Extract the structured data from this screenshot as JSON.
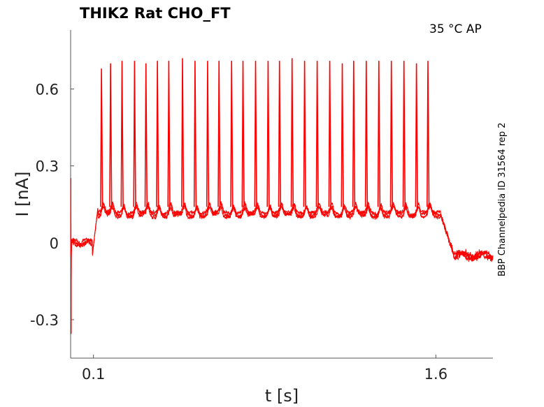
{
  "chart_data": {
    "type": "line",
    "title": "THIK2  Rat  CHO_FT",
    "annotation": "35 °C  AP",
    "side_label": "BBP Channelpedia ID 31564 rep 2",
    "xlabel": "t [s]",
    "ylabel": "I [nA]",
    "xlim": [
      0.0,
      1.85
    ],
    "ylim": [
      -0.45,
      0.83
    ],
    "x_ticks": [
      {
        "value": 0.1,
        "label": "0.1"
      },
      {
        "value": 1.6,
        "label": "1.6"
      }
    ],
    "y_ticks": [
      {
        "value": 0.6,
        "label": "0.6"
      },
      {
        "value": 0.3,
        "label": "0.3"
      },
      {
        "value": 0.0,
        "label": "0"
      },
      {
        "value": -0.3,
        "label": "-0.3"
      }
    ],
    "grid": false,
    "line_color": "#ff0000",
    "series": [
      {
        "baseline_before": 0.0,
        "step_on_time": 0.1,
        "step_off_time": 1.62,
        "plateau_level": 0.11,
        "baseline_after": -0.05,
        "spike_times": [
          0.135,
          0.175,
          0.225,
          0.28,
          0.33,
          0.38,
          0.43,
          0.49,
          0.545,
          0.6,
          0.65,
          0.705,
          0.755,
          0.81,
          0.865,
          0.915,
          0.97,
          1.025,
          1.08,
          1.135,
          1.19,
          1.24,
          1.295,
          1.35,
          1.405,
          1.46,
          1.515,
          1.565
        ],
        "spike_peaks": [
          0.68,
          0.7,
          0.71,
          0.71,
          0.7,
          0.71,
          0.71,
          0.72,
          0.71,
          0.71,
          0.71,
          0.71,
          0.71,
          0.71,
          0.71,
          0.71,
          0.72,
          0.71,
          0.71,
          0.71,
          0.7,
          0.71,
          0.71,
          0.71,
          0.71,
          0.71,
          0.7,
          0.71
        ]
      }
    ]
  }
}
